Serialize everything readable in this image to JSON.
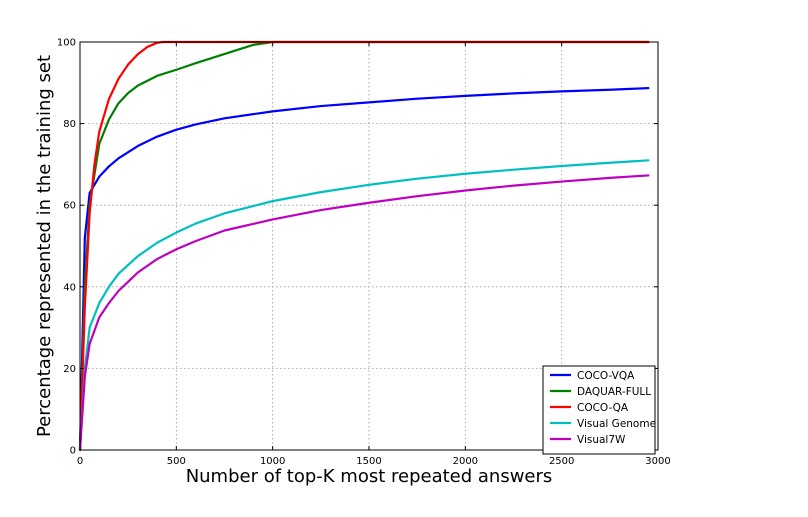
{
  "chart_data": {
    "type": "line",
    "title": "",
    "xlabel": "Number of top-K most repeated answers",
    "ylabel": "Percentage represented in the training set",
    "xlim": [
      0,
      3000
    ],
    "ylim": [
      0,
      100
    ],
    "xticks": [
      0,
      500,
      1000,
      1500,
      2000,
      2500,
      3000
    ],
    "yticks": [
      0,
      20,
      40,
      60,
      80,
      100
    ],
    "xtick_labels": [
      "0",
      "500",
      "1000",
      "1500",
      "2000",
      "2500",
      "3000"
    ],
    "ytick_labels": [
      "0",
      "20",
      "40",
      "60",
      "80",
      "100"
    ],
    "grid": true,
    "legend_position": "lower-right",
    "series": [
      {
        "name": "COCO-VQA",
        "color": "#0000ff",
        "x": [
          0,
          25,
          50,
          100,
          150,
          200,
          300,
          400,
          500,
          600,
          750,
          1000,
          1250,
          1500,
          1750,
          2000,
          2250,
          2500,
          2750,
          2950
        ],
        "y": [
          0,
          52,
          63,
          67,
          69.5,
          71.5,
          74.5,
          76.8,
          78.5,
          79.8,
          81.3,
          83.0,
          84.3,
          85.2,
          86.1,
          86.8,
          87.4,
          87.9,
          88.3,
          88.7
        ]
      },
      {
        "name": "DAQUAR-FULL",
        "color": "#008000",
        "x": [
          0,
          25,
          50,
          100,
          150,
          200,
          250,
          300,
          400,
          500,
          600,
          700,
          800,
          900,
          1000,
          1500,
          2000,
          2500,
          2950
        ],
        "y": [
          0,
          40,
          60,
          75,
          81,
          85,
          87.5,
          89.3,
          91.7,
          93.2,
          94.8,
          96.3,
          97.8,
          99.3,
          100,
          100,
          100,
          100,
          100
        ]
      },
      {
        "name": "COCO-QA",
        "color": "#ff0000",
        "x": [
          0,
          25,
          50,
          75,
          100,
          150,
          200,
          250,
          300,
          350,
          400,
          430,
          500,
          1000,
          1500,
          2000,
          2500,
          2950
        ],
        "y": [
          0,
          35,
          58,
          70,
          78,
          86,
          91,
          94.5,
          97,
          98.8,
          99.8,
          100,
          100,
          100,
          100,
          100,
          100,
          100
        ]
      },
      {
        "name": "Visual Genome",
        "color": "#00bfbf",
        "x": [
          0,
          25,
          50,
          100,
          150,
          200,
          300,
          400,
          500,
          600,
          750,
          1000,
          1250,
          1500,
          1750,
          2000,
          2250,
          2500,
          2750,
          2950
        ],
        "y": [
          0,
          20,
          30,
          36,
          40,
          43.2,
          47.5,
          50.8,
          53.3,
          55.5,
          58,
          61,
          63.2,
          65,
          66.5,
          67.7,
          68.7,
          69.6,
          70.4,
          71
        ]
      },
      {
        "name": "Visual7W",
        "color": "#bf00bf",
        "x": [
          0,
          25,
          50,
          100,
          150,
          200,
          300,
          400,
          500,
          600,
          750,
          1000,
          1250,
          1500,
          1750,
          2000,
          2250,
          2500,
          2750,
          2950
        ],
        "y": [
          0,
          18,
          26,
          32.5,
          36,
          39,
          43.5,
          46.8,
          49.2,
          51.2,
          53.8,
          56.5,
          58.8,
          60.6,
          62.2,
          63.6,
          64.8,
          65.8,
          66.7,
          67.3
        ]
      }
    ]
  }
}
